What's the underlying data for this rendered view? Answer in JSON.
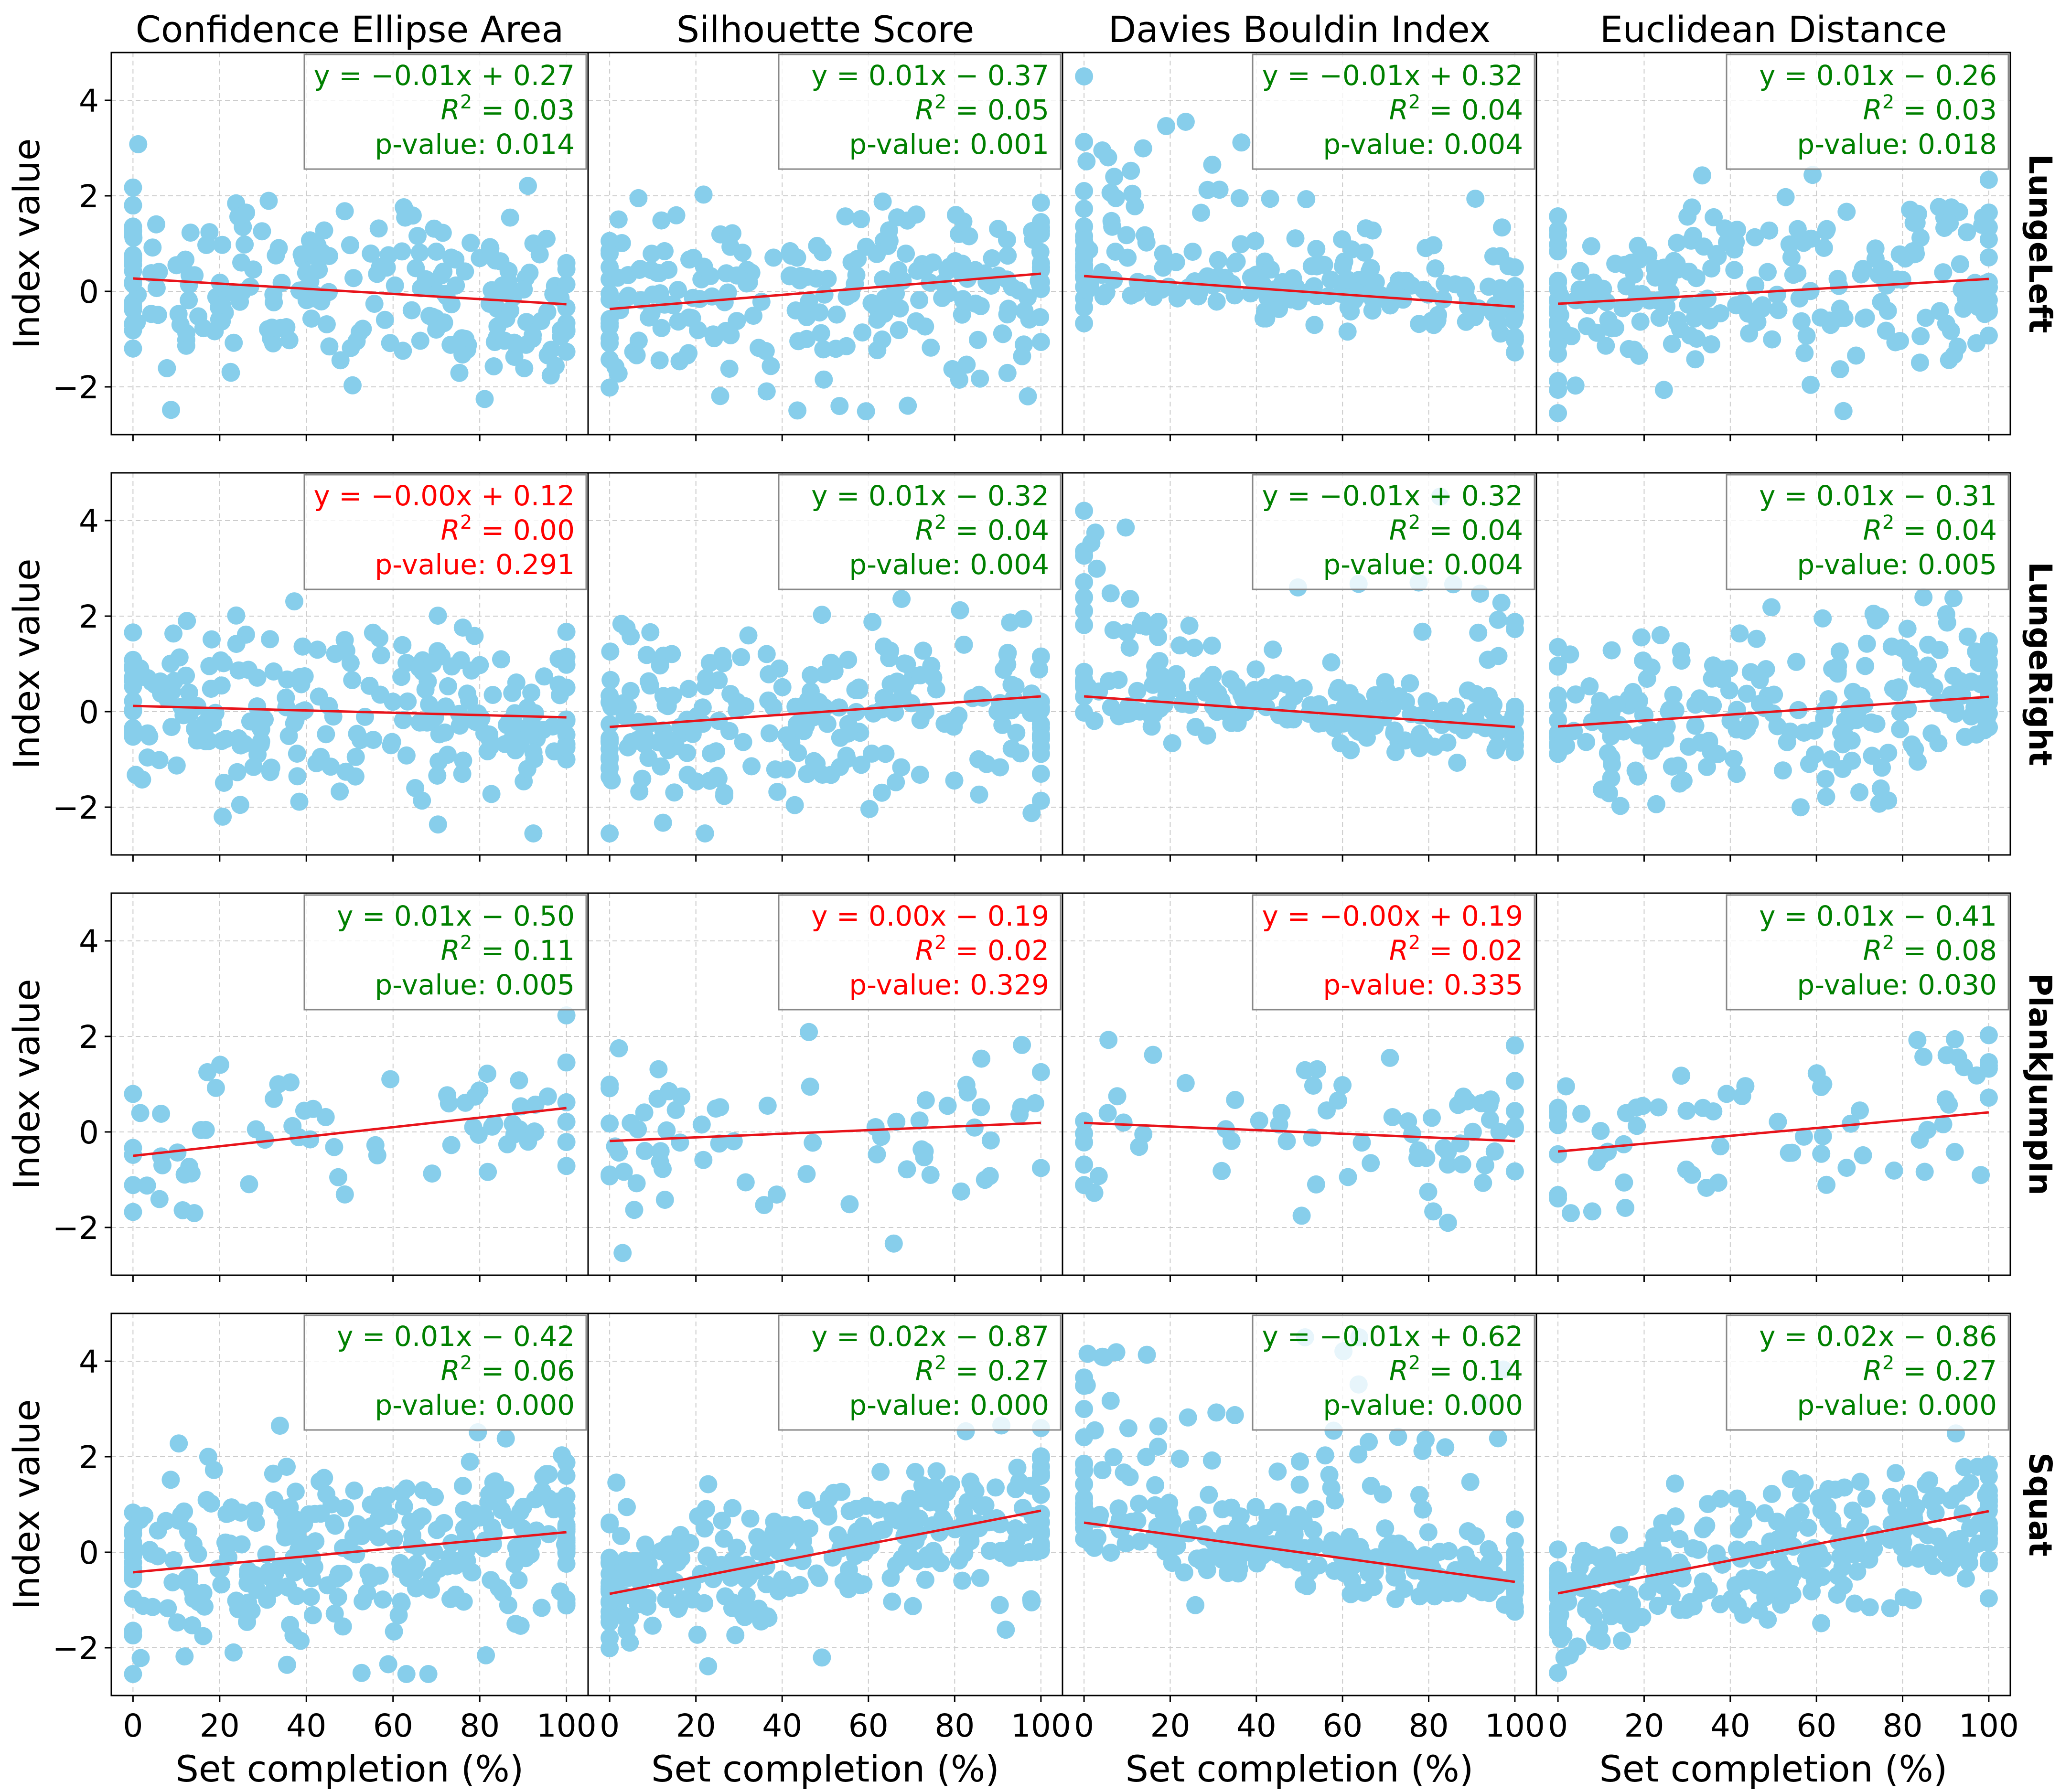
{
  "figure": {
    "col_titles": [
      "Confidence Ellipse Area",
      "Silhouette Score",
      "Davies Bouldin Index",
      "Euclidean Distance"
    ],
    "row_labels": [
      "LungeLeft",
      "LungeRight",
      "PlankJumpIn",
      "Squat"
    ],
    "ylabel": "Index value",
    "xlabel": "Set completion (%)",
    "x_ticks": [
      "0",
      "20",
      "40",
      "60",
      "80",
      "100"
    ],
    "y_ticks": [
      "4",
      "2",
      "0",
      "−2"
    ]
  },
  "colors": {
    "points": "#87CEEB",
    "fit_line": "#E8141B",
    "significant": "#008000",
    "not_significant": "#FF0000",
    "grid": "#cccccc"
  },
  "chart_data": {
    "type": "scatter",
    "xlim": [
      -5,
      105
    ],
    "ylim": [
      -3,
      5
    ],
    "grid": true,
    "panels": [
      {
        "row": 0,
        "col": 0,
        "equation": "y = −0.01x + 0.27",
        "r2": "0.03",
        "p_value": "p-value: 0.014",
        "significant": true,
        "slope": -0.0054,
        "intercept": 0.27,
        "n": 230,
        "spread": 0.95,
        "seed": 11
      },
      {
        "row": 0,
        "col": 1,
        "equation": "y = 0.01x − 0.37",
        "r2": "0.05",
        "p_value": "p-value: 0.001",
        "significant": true,
        "slope": 0.0074,
        "intercept": -0.37,
        "n": 230,
        "spread": 0.95,
        "seed": 12
      },
      {
        "row": 0,
        "col": 2,
        "equation": "y = −0.01x + 0.32",
        "r2": "0.04",
        "p_value": "p-value: 0.004",
        "significant": true,
        "slope": -0.0064,
        "intercept": 0.32,
        "n": 230,
        "spread": 0.45,
        "seed": 13,
        "skew": true
      },
      {
        "row": 0,
        "col": 3,
        "equation": "y = 0.01x − 0.26",
        "r2": "0.03",
        "p_value": "p-value: 0.018",
        "significant": true,
        "slope": 0.0052,
        "intercept": -0.26,
        "n": 230,
        "spread": 0.95,
        "seed": 14
      },
      {
        "row": 1,
        "col": 0,
        "equation": "y = −0.00x + 0.12",
        "r2": "0.00",
        "p_value": "p-value: 0.291",
        "significant": false,
        "slope": -0.0024,
        "intercept": 0.12,
        "n": 230,
        "spread": 0.9,
        "seed": 21
      },
      {
        "row": 1,
        "col": 1,
        "equation": "y = 0.01x − 0.32",
        "r2": "0.04",
        "p_value": "p-value: 0.004",
        "significant": true,
        "slope": 0.0064,
        "intercept": -0.32,
        "n": 230,
        "spread": 0.9,
        "seed": 22
      },
      {
        "row": 1,
        "col": 2,
        "equation": "y = −0.01x + 0.32",
        "r2": "0.04",
        "p_value": "p-value: 0.004",
        "significant": true,
        "slope": -0.0064,
        "intercept": 0.32,
        "n": 230,
        "spread": 0.45,
        "seed": 23,
        "skew": true
      },
      {
        "row": 1,
        "col": 3,
        "equation": "y = 0.01x − 0.31",
        "r2": "0.04",
        "p_value": "p-value: 0.005",
        "significant": true,
        "slope": 0.0062,
        "intercept": -0.31,
        "n": 230,
        "spread": 0.9,
        "seed": 24
      },
      {
        "row": 2,
        "col": 0,
        "equation": "y = 0.01x − 0.50",
        "r2": "0.11",
        "p_value": "p-value: 0.005",
        "significant": true,
        "slope": 0.01,
        "intercept": -0.5,
        "n": 70,
        "spread": 0.85,
        "seed": 31
      },
      {
        "row": 2,
        "col": 1,
        "equation": "y = 0.00x − 0.19",
        "r2": "0.02",
        "p_value": "p-value: 0.329",
        "significant": false,
        "slope": 0.0038,
        "intercept": -0.19,
        "n": 70,
        "spread": 0.85,
        "seed": 32
      },
      {
        "row": 2,
        "col": 2,
        "equation": "y = −0.00x + 0.19",
        "r2": "0.02",
        "p_value": "p-value: 0.335",
        "significant": false,
        "slope": -0.0038,
        "intercept": 0.19,
        "n": 70,
        "spread": 0.85,
        "seed": 33
      },
      {
        "row": 2,
        "col": 3,
        "equation": "y = 0.01x − 0.41",
        "r2": "0.08",
        "p_value": "p-value: 0.030",
        "significant": true,
        "slope": 0.0082,
        "intercept": -0.41,
        "n": 70,
        "spread": 0.85,
        "seed": 34
      },
      {
        "row": 3,
        "col": 0,
        "equation": "y = 0.01x − 0.42",
        "r2": "0.06",
        "p_value": "p-value: 0.000",
        "significant": true,
        "slope": 0.0084,
        "intercept": -0.42,
        "n": 300,
        "spread": 0.85,
        "seed": 41
      },
      {
        "row": 3,
        "col": 1,
        "equation": "y = 0.02x − 0.87",
        "r2": "0.27",
        "p_value": "p-value: 0.000",
        "significant": true,
        "slope": 0.0174,
        "intercept": -0.87,
        "n": 300,
        "spread": 0.7,
        "seed": 42
      },
      {
        "row": 3,
        "col": 2,
        "equation": "y = −0.01x + 0.62",
        "r2": "0.14",
        "p_value": "p-value: 0.000",
        "significant": true,
        "slope": -0.0124,
        "intercept": 0.62,
        "n": 300,
        "spread": 0.6,
        "seed": 43,
        "skew": true
      },
      {
        "row": 3,
        "col": 3,
        "equation": "y = 0.02x − 0.86",
        "r2": "0.27",
        "p_value": "p-value: 0.000",
        "significant": true,
        "slope": 0.0172,
        "intercept": -0.86,
        "n": 300,
        "spread": 0.7,
        "seed": 44
      }
    ]
  }
}
